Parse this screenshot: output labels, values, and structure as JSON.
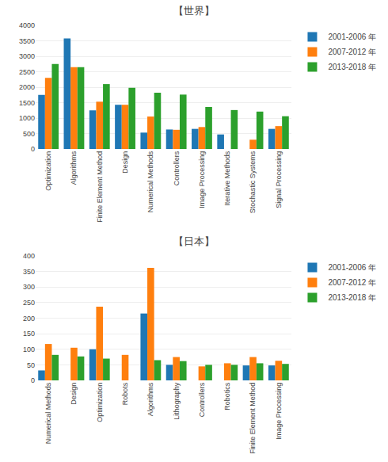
{
  "chart_data": [
    {
      "type": "bar",
      "title": "【世界】",
      "categories": [
        "Optimization",
        "Algorithms",
        "Finite Element Method",
        "Design",
        "Numerical Methods",
        "Controllers",
        "Image Processing",
        "Iterative Methods",
        "Stochastic Systems",
        "Signal Processing"
      ],
      "series": [
        {
          "name": "2001-2006 年",
          "values": [
            1750,
            3580,
            1250,
            1430,
            530,
            630,
            650,
            470,
            0,
            650
          ]
        },
        {
          "name": "2007-2012 年",
          "values": [
            2300,
            2650,
            1530,
            1430,
            1050,
            620,
            710,
            0,
            300,
            740
          ]
        },
        {
          "name": "2013-2018 年",
          "values": [
            2750,
            2650,
            2100,
            1980,
            1820,
            1760,
            1360,
            1260,
            1210,
            1060
          ]
        }
      ],
      "ylim": [
        0,
        4000
      ],
      "yticks": [
        0,
        500,
        1000,
        1500,
        2000,
        2500,
        3000,
        3500,
        4000
      ],
      "grid": true,
      "legend": "right"
    },
    {
      "type": "bar",
      "title": "【日本】",
      "categories": [
        "Numerical Methods",
        "Design",
        "Optimization",
        "Robots",
        "Algorithms",
        "Lithography",
        "Controllers",
        "Robotics",
        "Finite Element Method",
        "Image Processing"
      ],
      "series": [
        {
          "name": "2001-2006 年",
          "values": [
            32,
            0,
            100,
            0,
            215,
            50,
            0,
            0,
            48,
            48
          ]
        },
        {
          "name": "2007-2012 年",
          "values": [
            117,
            105,
            237,
            82,
            362,
            75,
            45,
            55,
            75,
            63
          ]
        },
        {
          "name": "2013-2018 年",
          "values": [
            82,
            77,
            70,
            0,
            65,
            62,
            50,
            50,
            55,
            53
          ]
        }
      ],
      "ylim": [
        0,
        400
      ],
      "yticks": [
        0,
        50,
        100,
        150,
        200,
        250,
        300,
        350,
        400
      ],
      "grid": true,
      "legend": "right"
    }
  ]
}
